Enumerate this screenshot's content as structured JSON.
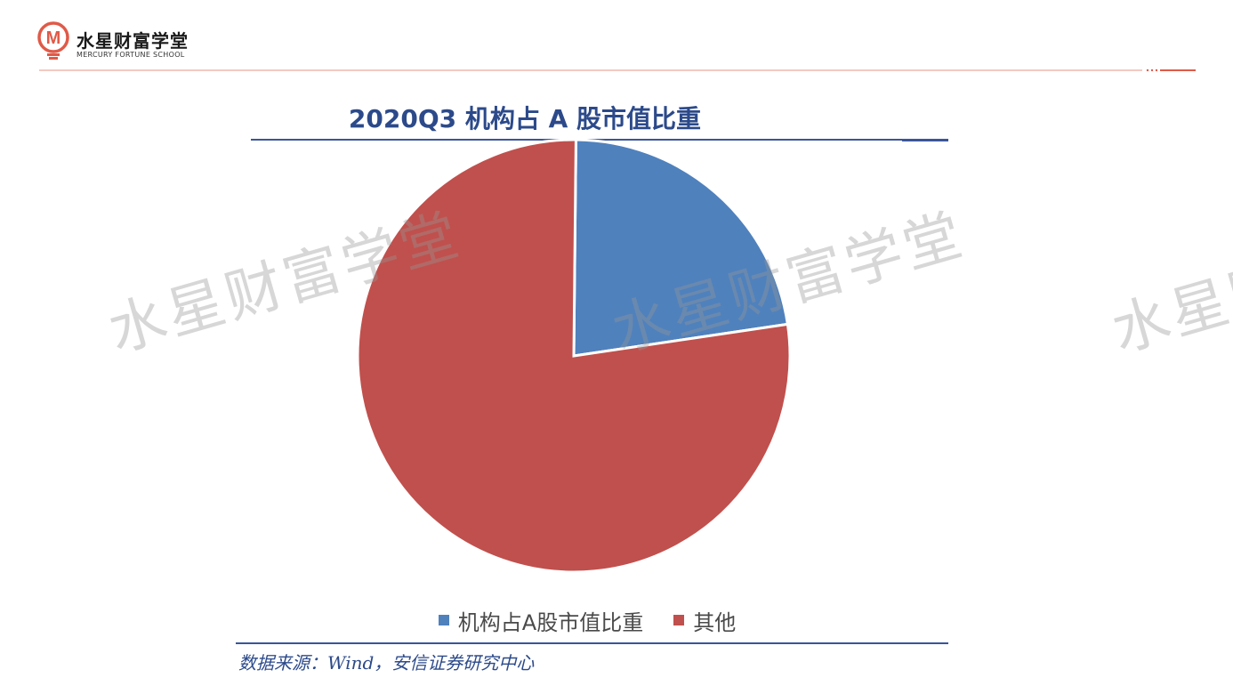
{
  "header": {
    "brand_name": "水星财富学堂",
    "brand_subtitle": "MERCURY FORTUNE SCHOOL",
    "logo_letter": "M",
    "accent_color": "#e05a48"
  },
  "watermark_text": "水星财富学堂",
  "chart_data": {
    "type": "pie",
    "title": "2020Q3 机构占 A 股市值比重",
    "slices": [
      {
        "label": "机构占A股市值比重",
        "value": 22.5,
        "color": "#4f81bd"
      },
      {
        "label": "其他",
        "value": 77.5,
        "color": "#c0504d"
      }
    ],
    "legend_position": "bottom",
    "source": "数据来源：Wind，安信证券研究中心"
  }
}
